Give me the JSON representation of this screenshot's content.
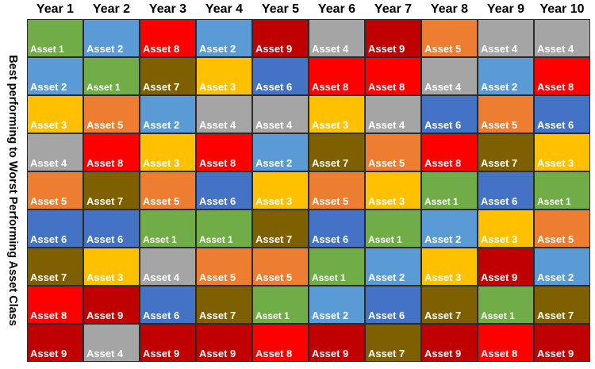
{
  "chart_data": {
    "type": "table",
    "ylabel": "Best performing to Worst Performing Asset Class",
    "columns": [
      "Year 1",
      "Year 2",
      "Year 3",
      "Year 4",
      "Year 5",
      "Year 6",
      "Year 7",
      "Year 8",
      "Year 9",
      "Year 10"
    ],
    "rows": [
      [
        "Asset 1",
        "Asset 2",
        "Asset 8",
        "Asset 2",
        "Asset 9",
        "Asset 4",
        "Asset 9",
        "Asset 5",
        "Asset 4",
        "Asset 4"
      ],
      [
        "Asset 2",
        "Asset 1",
        "Asset 7",
        "Asset 3",
        "Asset 6",
        "Asset 8",
        "Asset 8",
        "Asset 4",
        "Asset 2",
        "Asset 8"
      ],
      [
        "Asset 3",
        "Asset 5",
        "Asset 2",
        "Asset 4",
        "Asset 4",
        "Asset 3",
        "Asset 4",
        "Asset 6",
        "Asset 5",
        "Asset 6"
      ],
      [
        "Asset 4",
        "Asset 8",
        "Asset 3",
        "Asset 8",
        "Asset 2",
        "Asset 7",
        "Asset 5",
        "Asset 8",
        "Asset 7",
        "Asset 3"
      ],
      [
        "Asset 5",
        "Asset 7",
        "Asset 5",
        "Asset 6",
        "Asset 3",
        "Asset 5",
        "Asset 3",
        "Asset 1",
        "Asset 6",
        "Asset 1"
      ],
      [
        "Asset 6",
        "Asset 6",
        "Asset 1",
        "Asset 1",
        "Asset 7",
        "Asset 6",
        "Asset 1",
        "Asset 2",
        "Asset 3",
        "Asset 5"
      ],
      [
        "Asset 7",
        "Asset 3",
        "Asset 4",
        "Asset 5",
        "Asset 5",
        "Asset 1",
        "Asset 2",
        "Asset 3",
        "Asset 9",
        "Asset 2"
      ],
      [
        "Asset 8",
        "Asset 9",
        "Asset 6",
        "Asset 7",
        "Asset 1",
        "Asset 2",
        "Asset 6",
        "Asset 7",
        "Asset 1",
        "Asset 7"
      ],
      [
        "Asset 9",
        "Asset 4",
        "Asset 9",
        "Asset 9",
        "Asset 8",
        "Asset 9",
        "Asset 7",
        "Asset 9",
        "Asset 8",
        "Asset 9"
      ]
    ],
    "asset_colors": {
      "Asset 1": "#70ad47",
      "Asset 2": "#5b9bd5",
      "Asset 3": "#ffc000",
      "Asset 4": "#a5a5a5",
      "Asset 5": "#ed7d31",
      "Asset 6": "#4472c4",
      "Asset 7": "#7f6000",
      "Asset 8": "#ff0000",
      "Asset 9": "#c00000"
    }
  }
}
